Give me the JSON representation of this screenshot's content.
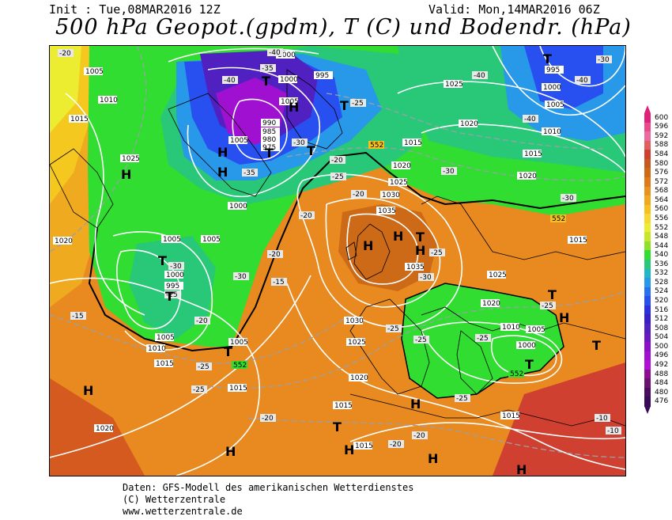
{
  "header": {
    "init": "Init : Tue,08MAR2016 12Z",
    "valid": "Valid: Mon,14MAR2016 06Z",
    "title": "500 hPa Geopot.(gpdm), T (C) und Bodendr. (hPa)"
  },
  "footer": {
    "line1": "Daten: GFS-Modell des amerikanischen Wetterdienstes",
    "line2": "(C) Wetterzentrale",
    "line3": "www.wetterzentrale.de"
  },
  "legend": {
    "labels": [
      "600",
      "596",
      "592",
      "588",
      "584",
      "580",
      "576",
      "572",
      "568",
      "564",
      "560",
      "556",
      "552",
      "548",
      "544",
      "540",
      "536",
      "532",
      "528",
      "524",
      "520",
      "516",
      "512",
      "508",
      "504",
      "500",
      "496",
      "492",
      "488",
      "484",
      "480",
      "476"
    ],
    "colors": [
      "#e0207a",
      "#e84a8a",
      "#ea6aa0",
      "#e06060",
      "#d04030",
      "#c45a20",
      "#cc6a18",
      "#dd7a1a",
      "#e89220",
      "#f0aa20",
      "#f5c020",
      "#f8d830",
      "#ecec30",
      "#c8e628",
      "#8ee028",
      "#30dd30",
      "#28c878",
      "#20b8c8",
      "#2898e8",
      "#2870f0",
      "#2850f0",
      "#2a30e0",
      "#3820c8",
      "#5020c0",
      "#6a18c0",
      "#8a10c8",
      "#a010d0",
      "#b010d8",
      "#8a1090",
      "#6a1070",
      "#4a0a60",
      "#3a0a5a"
    ]
  },
  "map": {
    "pressure_labels": [
      "1005",
      "1010",
      "1015",
      "1025",
      "1020",
      "1005",
      "1005",
      "1005",
      "1000",
      "995",
      "1010",
      "1015",
      "1020",
      "1005",
      "1000",
      "1005",
      "995",
      "1000",
      "985",
      "980",
      "975",
      "1000",
      "1005",
      "1025",
      "1020",
      "990",
      "995",
      "1000",
      "1005",
      "1010",
      "1015",
      "1020",
      "1030",
      "1035",
      "1035",
      "1015",
      "1020",
      "1025",
      "1025",
      "1015",
      "1020",
      "1030",
      "1025",
      "1020",
      "1015",
      "1015",
      "1010",
      "1000",
      "1005",
      "1015",
      "1015"
    ],
    "temp_labels": [
      "-20",
      "-40",
      "-40",
      "-35",
      "-35",
      "-30",
      "-25",
      "-25",
      "-20",
      "-20",
      "-20",
      "-30",
      "-30",
      "-20",
      "-15",
      "-20",
      "-25",
      "-25",
      "-25",
      "-20",
      "-15",
      "-25",
      "-25",
      "-25",
      "-30",
      "-25",
      "-25",
      "-30",
      "-40",
      "-30",
      "-30",
      "-20",
      "-10",
      "-10",
      "-20",
      "-25",
      "-40",
      "-40"
    ],
    "height_labels": [
      "552",
      "552",
      "552",
      "552"
    ],
    "highs": "H",
    "lows": "T"
  }
}
